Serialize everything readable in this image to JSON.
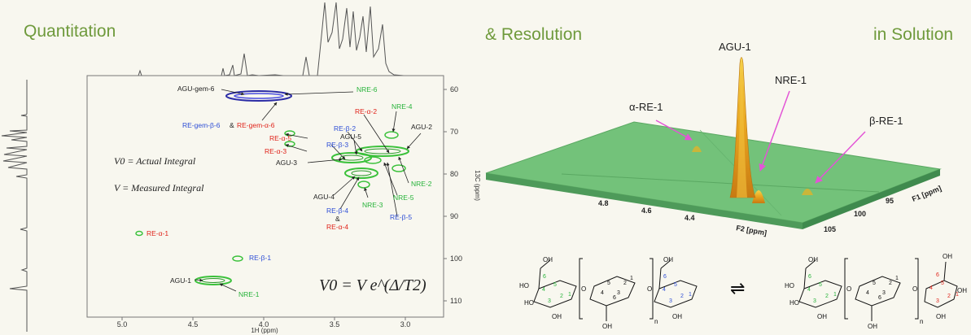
{
  "headings": {
    "quantitation": "Quantitation",
    "resolution": "& Resolution",
    "solution": "in Solution"
  },
  "hsqc": {
    "x_axis_label": "1H (ppm)",
    "y_axis_label": "13C (ppm)",
    "x_ticks": [
      "5.0",
      "4.5",
      "4.0",
      "3.5",
      "3.0"
    ],
    "y_ticks": [
      "60",
      "70",
      "80",
      "90",
      "100",
      "110"
    ],
    "annotations": {
      "agu_gem6": "AGU-gem-6",
      "nre6": "NRE-6",
      "re_gem_b6": "RE-gem-β-6",
      "amp": "&",
      "re_gem_a6": "RE-gem-α-6",
      "re_a2": "RE-α-2",
      "nre4": "NRE-4",
      "re_b2": "RE-β-2",
      "agu5": "AGU-5",
      "agu2": "AGU-2",
      "re_a5": "RE-α-5",
      "re_b3": "RE-β-3",
      "re_a3": "RE-α-3",
      "agu3": "AGU-3",
      "nre2": "NRE-2",
      "agu4": "AGU-4",
      "nre5": "NRE-5",
      "nre3": "NRE-3",
      "re_b5": "RE-β-5",
      "re_b4": "RE-β-4",
      "amp2": "&",
      "re_a4": "RE-α-4",
      "re_a1": "RE-α-1",
      "re_b1": "RE-β-1",
      "agu1": "AGU-1",
      "nre1": "NRE-1"
    },
    "legend_v0": "V0 = Actual Integral",
    "legend_v": "V = Measured Integral",
    "equation": "V0 = V e^(Δ/T2)"
  },
  "surface": {
    "labels": {
      "agu1": "AGU-1",
      "nre1": "NRE-1",
      "a_re1": "α-RE-1",
      "b_re1": "β-RE-1"
    },
    "f2_ticks": [
      "4.8",
      "4.6",
      "4.4"
    ],
    "f2_label": "F2 [ppm]",
    "f1_ticks": [
      "105",
      "100",
      "95"
    ],
    "f1_label": "F1 [ppm]"
  },
  "structure": {
    "left_ring_numbers": [
      "6",
      "4",
      "5",
      "3",
      "2",
      "1"
    ],
    "mid_ring_numbers": [
      "6",
      "5",
      "4",
      "3",
      "2",
      "1"
    ],
    "right_ring_numbers": [
      "6",
      "4",
      "5",
      "3",
      "2",
      "1"
    ],
    "oh": "OH",
    "ho": "HO",
    "o": "O",
    "n": "n",
    "equilibrium": "⇌"
  },
  "colors": {
    "heading_green": "#6f9a3c",
    "red": "#e0241b",
    "blue": "#2f4fd6",
    "green": "#27b33a",
    "contour_green": "#3bc13b",
    "contour_blue": "#2b2ca6",
    "surface": "#73c27a",
    "peak": "#e8a420"
  }
}
